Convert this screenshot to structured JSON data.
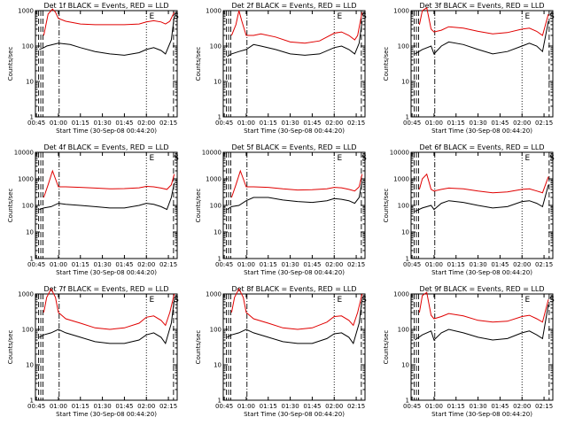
{
  "colors": {
    "events": "#000000",
    "lld": "#e00000",
    "axes": "#000000",
    "background": "#ffffff"
  },
  "chart_data": [
    {
      "type": "line",
      "title": "Det 1f BLACK = Events, RED = LLD",
      "xlabel": "Start Time (30-Sep-08 00:44:20)",
      "ylabel": "Counts/sec",
      "yscale": "log",
      "ylim": [
        1,
        1000
      ],
      "xlim": [
        "00:44:20",
        "02:21:00"
      ],
      "xticks": [
        "00:45",
        "01:00",
        "01:15",
        "01:30",
        "01:45",
        "02:00",
        "02:15"
      ],
      "yticks": [
        "1",
        "10",
        "100",
        "1000"
      ],
      "markers": [
        "E",
        "S"
      ],
      "series": [
        {
          "key": "events",
          "x": [
            "00:47",
            "00:50",
            "00:52",
            "01:00",
            "01:08",
            "01:15",
            "01:25",
            "01:35",
            "01:45",
            "01:55",
            "02:00",
            "02:05",
            "02:10",
            "02:13",
            "02:17",
            "02:19"
          ],
          "values": [
            80,
            90,
            100,
            120,
            110,
            90,
            70,
            60,
            55,
            65,
            80,
            90,
            75,
            60,
            150,
            700
          ]
        },
        {
          "key": "lld",
          "x": [
            "00:50",
            "00:53",
            "00:56",
            "00:58",
            "01:00",
            "01:05",
            "01:15",
            "01:25",
            "01:35",
            "01:45",
            "01:55",
            "02:00",
            "02:05",
            "02:10",
            "02:13",
            "02:16",
            "02:19"
          ],
          "values": [
            200,
            800,
            1100,
            900,
            600,
            500,
            420,
            400,
            400,
            400,
            420,
            480,
            520,
            480,
            420,
            500,
            900
          ]
        }
      ]
    },
    {
      "type": "line",
      "title": "Det 2f BLACK = Events, RED = LLD",
      "xlabel": "Start Time (30-Sep-08 00:44:20)",
      "ylabel": "Counts/sec",
      "yscale": "log",
      "ylim": [
        1,
        1000
      ],
      "xlim": [
        "00:44:20",
        "02:21:00"
      ],
      "xticks": [
        "00:45",
        "01:00",
        "01:15",
        "01:30",
        "01:45",
        "02:00",
        "02:15"
      ],
      "yticks": [
        "1",
        "10",
        "100",
        "1000"
      ],
      "markers": [
        "E",
        "S"
      ],
      "series": [
        {
          "key": "events",
          "x": [
            "00:47",
            "00:50",
            "00:55",
            "01:00",
            "01:05",
            "01:10",
            "01:20",
            "01:30",
            "01:40",
            "01:50",
            "02:00",
            "02:05",
            "02:10",
            "02:14",
            "02:17",
            "02:19"
          ],
          "values": [
            50,
            60,
            70,
            80,
            110,
            100,
            80,
            60,
            55,
            60,
            90,
            100,
            80,
            60,
            120,
            500
          ]
        },
        {
          "key": "lld",
          "x": [
            "00:50",
            "00:53",
            "00:55",
            "00:57",
            "01:00",
            "01:05",
            "01:10",
            "01:20",
            "01:30",
            "01:40",
            "01:50",
            "02:00",
            "02:05",
            "02:10",
            "02:14",
            "02:16",
            "02:19"
          ],
          "values": [
            200,
            400,
            1000,
            500,
            200,
            200,
            220,
            180,
            130,
            120,
            140,
            230,
            250,
            200,
            150,
            200,
            900
          ]
        }
      ]
    },
    {
      "type": "line",
      "title": "Det 3f BLACK = Events, RED = LLD",
      "xlabel": "Start Time (30-Sep-08 00:44:20)",
      "ylabel": "Counts/sec",
      "yscale": "log",
      "ylim": [
        1,
        1000
      ],
      "xlim": [
        "00:44:20",
        "02:21:00"
      ],
      "xticks": [
        "00:45",
        "01:00",
        "01:15",
        "01:30",
        "01:45",
        "02:00",
        "02:15"
      ],
      "yticks": [
        "1",
        "10",
        "100",
        "1000"
      ],
      "markers": [
        "E",
        "S"
      ],
      "series": [
        {
          "key": "events",
          "x": [
            "00:47",
            "00:52",
            "00:58",
            "01:00",
            "01:05",
            "01:10",
            "01:20",
            "01:30",
            "01:40",
            "01:50",
            "02:00",
            "02:05",
            "02:10",
            "02:14",
            "02:18"
          ],
          "values": [
            60,
            80,
            100,
            60,
            100,
            130,
            110,
            80,
            60,
            70,
            100,
            120,
            100,
            70,
            500
          ]
        },
        {
          "key": "lld",
          "x": [
            "00:50",
            "00:52",
            "00:55",
            "00:58",
            "01:00",
            "01:05",
            "01:10",
            "01:20",
            "01:30",
            "01:40",
            "01:50",
            "02:00",
            "02:05",
            "02:10",
            "02:14",
            "02:18"
          ],
          "values": [
            400,
            1000,
            1200,
            300,
            250,
            280,
            350,
            320,
            260,
            220,
            240,
            300,
            320,
            260,
            200,
            800
          ]
        }
      ]
    },
    {
      "type": "line",
      "title": "Det 4f BLACK = Events, RED = LLD",
      "xlabel": "Start Time (30-Sep-08 00:44:20)",
      "ylabel": "Counts/sec",
      "yscale": "log",
      "ylim": [
        1,
        10000
      ],
      "xlim": [
        "00:44:20",
        "02:21:00"
      ],
      "xticks": [
        "00:45",
        "01:00",
        "01:15",
        "01:30",
        "01:45",
        "02:00",
        "02:15"
      ],
      "yticks": [
        "1",
        "10",
        "100",
        "1000",
        "10000"
      ],
      "markers": [
        "E",
        "S"
      ],
      "series": [
        {
          "key": "events",
          "x": [
            "00:47",
            "00:50",
            "00:55",
            "01:00",
            "01:05",
            "01:15",
            "01:25",
            "01:35",
            "01:45",
            "01:55",
            "02:00",
            "02:05",
            "02:10",
            "02:14",
            "02:17",
            "02:19"
          ],
          "values": [
            70,
            80,
            90,
            120,
            110,
            100,
            90,
            80,
            80,
            100,
            120,
            110,
            90,
            70,
            200,
            700
          ]
        },
        {
          "key": "lld",
          "x": [
            "00:50",
            "00:53",
            "00:56",
            "00:58",
            "01:00",
            "01:05",
            "01:15",
            "01:25",
            "01:35",
            "01:45",
            "01:55",
            "02:00",
            "02:05",
            "02:10",
            "02:14",
            "02:17",
            "02:19"
          ],
          "values": [
            200,
            600,
            2000,
            1000,
            500,
            500,
            480,
            450,
            420,
            430,
            460,
            520,
            500,
            450,
            400,
            600,
            1500
          ]
        }
      ]
    },
    {
      "type": "line",
      "title": "Det 5f BLACK = Events, RED = LLD",
      "xlabel": "Start Time (30-Sep-08 00:44:20)",
      "ylabel": "Counts/sec",
      "yscale": "log",
      "ylim": [
        1,
        10000
      ],
      "xlim": [
        "00:44:20",
        "02:21:00"
      ],
      "xticks": [
        "00:45",
        "01:00",
        "01:15",
        "01:30",
        "01:45",
        "02:00",
        "02:15"
      ],
      "yticks": [
        "1",
        "10",
        "100",
        "1000",
        "10000"
      ],
      "markers": [
        "E",
        "S"
      ],
      "series": [
        {
          "key": "events",
          "x": [
            "00:47",
            "00:50",
            "00:55",
            "01:00",
            "01:05",
            "01:15",
            "01:25",
            "01:35",
            "01:45",
            "01:55",
            "02:00",
            "02:05",
            "02:10",
            "02:14",
            "02:17",
            "02:19"
          ],
          "values": [
            70,
            90,
            100,
            150,
            200,
            200,
            160,
            140,
            130,
            150,
            180,
            170,
            150,
            120,
            200,
            800
          ]
        },
        {
          "key": "lld",
          "x": [
            "00:50",
            "00:53",
            "00:56",
            "00:58",
            "01:00",
            "01:05",
            "01:15",
            "01:25",
            "01:35",
            "01:45",
            "01:55",
            "02:00",
            "02:05",
            "02:10",
            "02:14",
            "02:17",
            "02:19"
          ],
          "values": [
            200,
            600,
            2000,
            1000,
            500,
            500,
            480,
            420,
            380,
            390,
            420,
            480,
            460,
            400,
            350,
            500,
            1500
          ]
        }
      ]
    },
    {
      "type": "line",
      "title": "Det 6f BLACK = Events, RED = LLD",
      "xlabel": "Start Time (30-Sep-08 00:44:20)",
      "ylabel": "Counts/sec",
      "yscale": "log",
      "ylim": [
        1,
        10000
      ],
      "xlim": [
        "00:44:20",
        "02:21:00"
      ],
      "xticks": [
        "00:45",
        "01:00",
        "01:15",
        "01:30",
        "01:45",
        "02:00",
        "02:15"
      ],
      "yticks": [
        "1",
        "10",
        "100",
        "1000",
        "10000"
      ],
      "markers": [
        "E",
        "S"
      ],
      "series": [
        {
          "key": "events",
          "x": [
            "00:47",
            "00:52",
            "00:58",
            "01:00",
            "01:05",
            "01:10",
            "01:20",
            "01:30",
            "01:40",
            "01:50",
            "02:00",
            "02:05",
            "02:10",
            "02:14",
            "02:18"
          ],
          "values": [
            60,
            80,
            100,
            70,
            120,
            150,
            130,
            100,
            80,
            90,
            140,
            150,
            120,
            90,
            600
          ]
        },
        {
          "key": "lld",
          "x": [
            "00:50",
            "00:52",
            "00:55",
            "00:58",
            "01:00",
            "01:05",
            "01:10",
            "01:20",
            "01:30",
            "01:40",
            "01:50",
            "02:00",
            "02:05",
            "02:10",
            "02:14",
            "02:18"
          ],
          "values": [
            400,
            1000,
            1500,
            400,
            350,
            400,
            450,
            420,
            350,
            300,
            320,
            400,
            420,
            350,
            300,
            1200
          ]
        }
      ]
    },
    {
      "type": "line",
      "title": "Det 7f BLACK = Events, RED = LLD",
      "xlabel": "Start Time (30-Sep-08 00:44:20)",
      "ylabel": "Counts/sec",
      "yscale": "log",
      "ylim": [
        1,
        1000
      ],
      "xlim": [
        "00:44:20",
        "02:21:00"
      ],
      "xticks": [
        "00:45",
        "01:00",
        "01:15",
        "01:30",
        "01:45",
        "02:00",
        "02:15"
      ],
      "yticks": [
        "1",
        "10",
        "100",
        "1000"
      ],
      "markers": [
        "E",
        "S"
      ],
      "series": [
        {
          "key": "events",
          "x": [
            "00:47",
            "00:50",
            "00:55",
            "01:00",
            "01:05",
            "01:15",
            "01:25",
            "01:35",
            "01:45",
            "01:55",
            "02:00",
            "02:05",
            "02:10",
            "02:13",
            "02:17",
            "02:19"
          ],
          "values": [
            60,
            70,
            80,
            100,
            80,
            60,
            45,
            40,
            40,
            50,
            70,
            80,
            60,
            40,
            150,
            700
          ]
        },
        {
          "key": "lld",
          "x": [
            "00:50",
            "00:52",
            "00:55",
            "00:58",
            "01:00",
            "01:05",
            "01:15",
            "01:25",
            "01:35",
            "01:45",
            "01:55",
            "02:00",
            "02:05",
            "02:10",
            "02:13",
            "02:16",
            "02:19"
          ],
          "values": [
            300,
            800,
            1400,
            800,
            300,
            200,
            150,
            110,
            100,
            110,
            150,
            220,
            240,
            180,
            130,
            300,
            1000
          ]
        }
      ]
    },
    {
      "type": "line",
      "title": "Det 8f BLACK = Events, RED = LLD",
      "xlabel": "Start Time (30-Sep-08 00:44:20)",
      "ylabel": "Counts/sec",
      "yscale": "log",
      "ylim": [
        1,
        1000
      ],
      "xlim": [
        "00:44:20",
        "02:21:00"
      ],
      "xticks": [
        "00:45",
        "01:00",
        "01:15",
        "01:30",
        "01:45",
        "02:00",
        "02:15"
      ],
      "yticks": [
        "1",
        "10",
        "100",
        "1000"
      ],
      "markers": [
        "E",
        "S"
      ],
      "series": [
        {
          "key": "events",
          "x": [
            "00:47",
            "00:50",
            "00:55",
            "01:00",
            "01:05",
            "01:15",
            "01:25",
            "01:35",
            "01:45",
            "01:55",
            "02:00",
            "02:05",
            "02:10",
            "02:13",
            "02:17",
            "02:19"
          ],
          "values": [
            60,
            70,
            80,
            100,
            80,
            60,
            45,
            40,
            40,
            55,
            75,
            80,
            60,
            40,
            150,
            700
          ]
        },
        {
          "key": "lld",
          "x": [
            "00:50",
            "00:52",
            "00:55",
            "00:58",
            "01:00",
            "01:05",
            "01:15",
            "01:25",
            "01:35",
            "01:45",
            "01:55",
            "02:00",
            "02:05",
            "02:10",
            "02:13",
            "02:16",
            "02:19"
          ],
          "values": [
            300,
            800,
            1400,
            800,
            300,
            200,
            150,
            110,
            100,
            110,
            160,
            230,
            240,
            180,
            130,
            300,
            1000
          ]
        }
      ]
    },
    {
      "type": "line",
      "title": "Det 9f BLACK = Events, RED = LLD",
      "xlabel": "Start Time (30-Sep-08 00:44:20)",
      "ylabel": "Counts/sec",
      "yscale": "log",
      "ylim": [
        1,
        1000
      ],
      "xlim": [
        "00:44:20",
        "02:21:00"
      ],
      "xticks": [
        "00:45",
        "01:00",
        "01:15",
        "01:30",
        "01:45",
        "02:00",
        "02:15"
      ],
      "yticks": [
        "1",
        "10",
        "100",
        "1000"
      ],
      "markers": [
        "E",
        "S"
      ],
      "series": [
        {
          "key": "events",
          "x": [
            "00:47",
            "00:52",
            "00:58",
            "01:00",
            "01:05",
            "01:10",
            "01:20",
            "01:30",
            "01:40",
            "01:50",
            "02:00",
            "02:05",
            "02:10",
            "02:14",
            "02:18"
          ],
          "values": [
            50,
            70,
            90,
            50,
            80,
            100,
            80,
            60,
            50,
            55,
            80,
            90,
            70,
            55,
            500
          ]
        },
        {
          "key": "lld",
          "x": [
            "00:50",
            "00:52",
            "00:55",
            "00:58",
            "01:00",
            "01:05",
            "01:10",
            "01:20",
            "01:30",
            "01:40",
            "01:50",
            "02:00",
            "02:05",
            "02:10",
            "02:14",
            "02:18"
          ],
          "values": [
            300,
            900,
            1100,
            250,
            200,
            230,
            280,
            240,
            180,
            160,
            170,
            230,
            250,
            200,
            160,
            700
          ]
        }
      ]
    }
  ]
}
